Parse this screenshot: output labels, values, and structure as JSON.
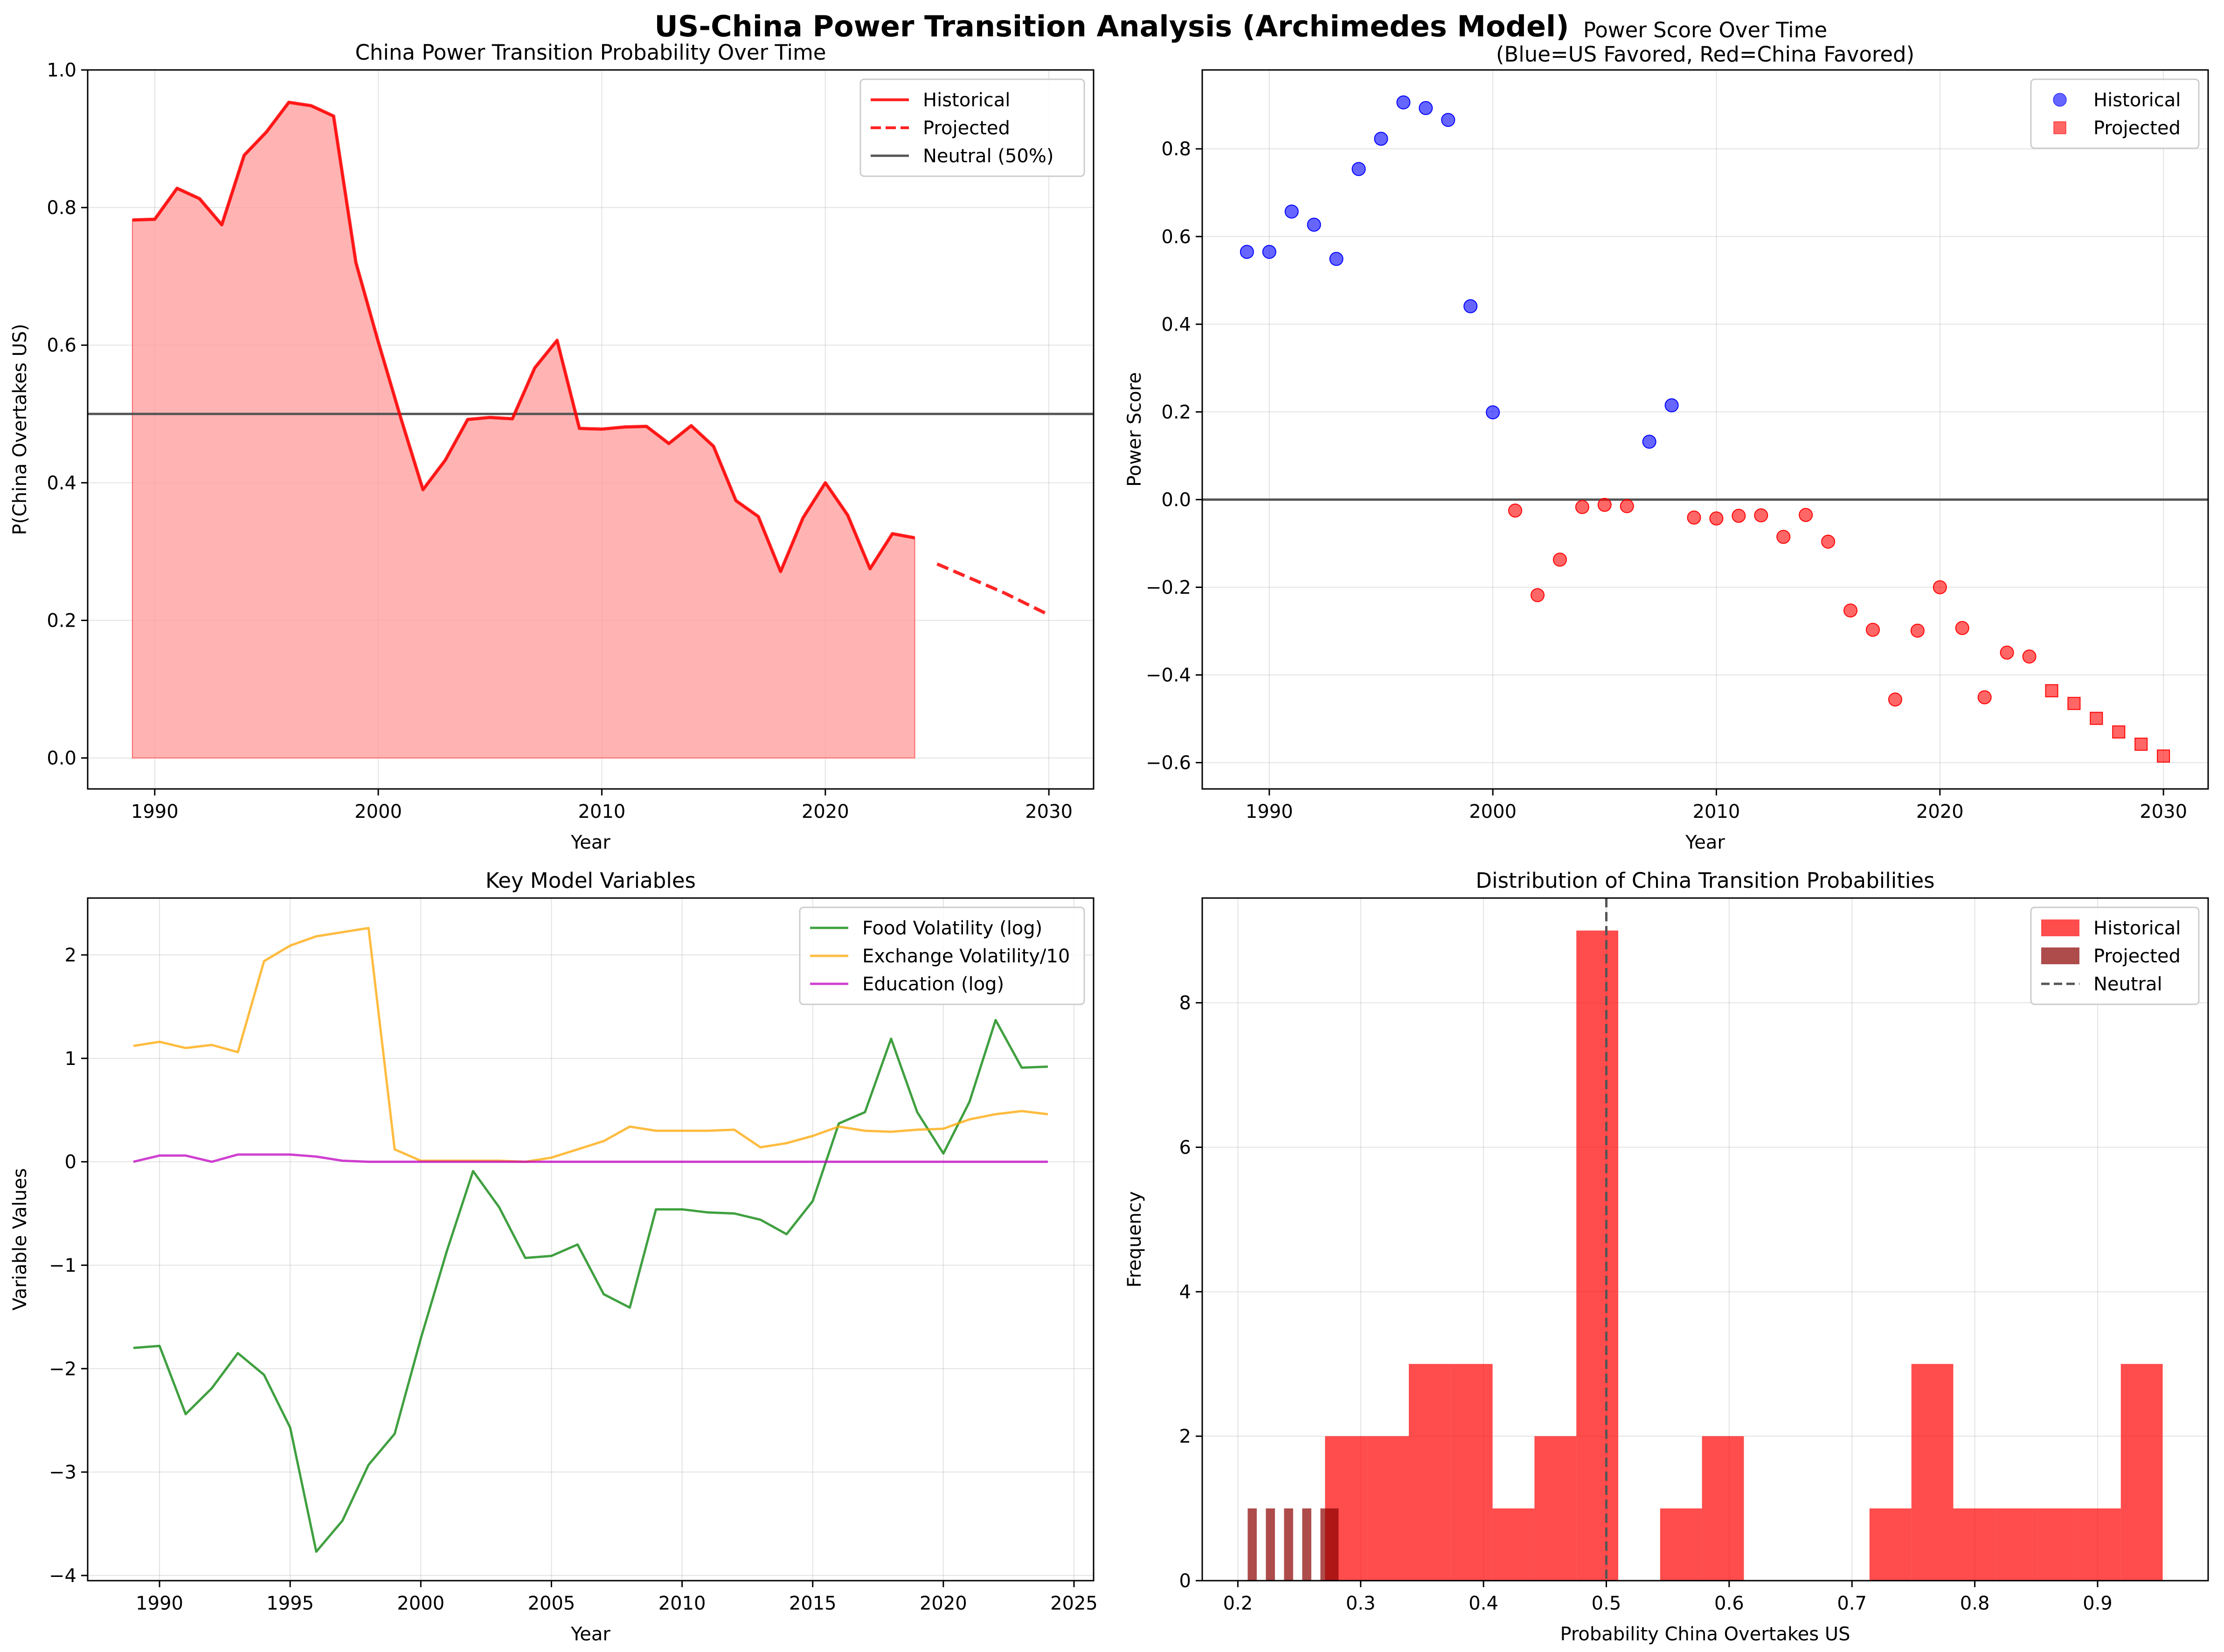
{
  "figure": {
    "title": "US-China Power Transition Analysis (Archimedes Model)"
  },
  "chart_data": [
    {
      "type": "area",
      "title": "China Power Transition Probability Over Time",
      "xlabel": "Year",
      "ylabel": "P(China Overtakes US)",
      "xlim": [
        1987,
        2032
      ],
      "ylim": [
        -0.045,
        1.0
      ],
      "xticks": [
        1990,
        2000,
        2010,
        2020,
        2030
      ],
      "yticks": [
        0.0,
        0.2,
        0.4,
        0.6,
        0.8,
        1.0
      ],
      "grid": true,
      "legend_position": "upper right",
      "series": [
        {
          "name": "Historical",
          "style": "solid",
          "color": "#ff0000",
          "fill": "#ff9999",
          "x": [
            1989,
            1990,
            1991,
            1992,
            1993,
            1994,
            1995,
            1996,
            1997,
            1998,
            1999,
            2000,
            2001,
            2002,
            2003,
            2004,
            2005,
            2006,
            2007,
            2008,
            2009,
            2010,
            2011,
            2012,
            2013,
            2014,
            2015,
            2016,
            2017,
            2018,
            2019,
            2020,
            2021,
            2022,
            2023,
            2024
          ],
          "y": [
            0.782,
            0.783,
            0.828,
            0.813,
            0.775,
            0.876,
            0.91,
            0.953,
            0.948,
            0.933,
            0.72,
            0.605,
            0.495,
            0.39,
            0.433,
            0.492,
            0.495,
            0.493,
            0.567,
            0.607,
            0.479,
            0.478,
            0.481,
            0.482,
            0.457,
            0.483,
            0.453,
            0.374,
            0.351,
            0.271,
            0.349,
            0.4,
            0.353,
            0.275,
            0.326,
            0.32
          ]
        },
        {
          "name": "Projected",
          "style": "dashed",
          "color": "#ff0000",
          "x": [
            2025,
            2026,
            2027,
            2028,
            2029,
            2030
          ],
          "y": [
            0.282,
            0.268,
            0.254,
            0.24,
            0.224,
            0.208
          ]
        }
      ],
      "reference_lines": [
        {
          "name": "Neutral (50%)",
          "y": 0.5,
          "color": "#555555"
        }
      ]
    },
    {
      "type": "scatter",
      "title": "Power Score Over Time",
      "subtitle": "(Blue=US Favored, Red=China Favored)",
      "xlabel": "Year",
      "ylabel": "Power Score",
      "xlim": [
        1987,
        2032
      ],
      "ylim": [
        -0.66,
        0.98
      ],
      "xticks": [
        1990,
        2000,
        2010,
        2020,
        2030
      ],
      "yticks": [
        -0.6,
        -0.4,
        -0.2,
        0.0,
        0.2,
        0.4,
        0.6,
        0.8
      ],
      "ytick_labels": [
        "−0.6",
        "−0.4",
        "−0.2",
        "0.0",
        "0.2",
        "0.4",
        "0.6",
        "0.8"
      ],
      "grid": true,
      "legend_position": "upper right",
      "colors": {
        "us_favored": "#0000ff",
        "china_favored": "#ff0000"
      },
      "legend": [
        {
          "name": "Historical",
          "marker": "circle",
          "color": "#0000ff"
        },
        {
          "name": "Projected",
          "marker": "square",
          "color": "#ff0000"
        }
      ],
      "series": [
        {
          "name": "Historical",
          "marker": "circle",
          "x": [
            1989,
            1990,
            1991,
            1992,
            1993,
            1994,
            1995,
            1996,
            1997,
            1998,
            1999,
            2000,
            2001,
            2002,
            2003,
            2004,
            2005,
            2006,
            2007,
            2008,
            2009,
            2010,
            2011,
            2012,
            2013,
            2014,
            2015,
            2016,
            2017,
            2018,
            2019,
            2020,
            2021,
            2022,
            2023,
            2024
          ],
          "y": [
            0.565,
            0.565,
            0.657,
            0.627,
            0.549,
            0.754,
            0.823,
            0.906,
            0.893,
            0.866,
            0.441,
            0.199,
            -0.025,
            -0.218,
            -0.137,
            -0.017,
            -0.012,
            -0.015,
            0.132,
            0.215,
            -0.041,
            -0.043,
            -0.037,
            -0.036,
            -0.085,
            -0.035,
            -0.096,
            -0.253,
            -0.297,
            -0.456,
            -0.299,
            -0.2,
            -0.293,
            -0.451,
            -0.349,
            -0.358
          ]
        },
        {
          "name": "Projected",
          "marker": "square",
          "x": [
            2025,
            2026,
            2027,
            2028,
            2029,
            2030
          ],
          "y": [
            -0.436,
            -0.465,
            -0.499,
            -0.53,
            -0.558,
            -0.585
          ]
        }
      ],
      "reference_lines": [
        {
          "y": 0.0,
          "color": "#555555"
        }
      ]
    },
    {
      "type": "line",
      "title": "Key Model Variables",
      "xlabel": "Year",
      "ylabel": "Variable Values",
      "xlim": [
        1987.25,
        2025.75
      ],
      "ylim": [
        -4.05,
        2.55
      ],
      "xticks": [
        1990,
        1995,
        2000,
        2005,
        2010,
        2015,
        2020,
        2025
      ],
      "yticks": [
        -4,
        -3,
        -2,
        -1,
        0,
        1,
        2
      ],
      "ytick_labels": [
        "−4",
        "−3",
        "−2",
        "−1",
        "0",
        "1",
        "2"
      ],
      "grid": true,
      "legend_position": "upper right",
      "x": [
        1989,
        1990,
        1991,
        1992,
        1993,
        1994,
        1995,
        1996,
        1997,
        1998,
        1999,
        2000,
        2001,
        2002,
        2003,
        2004,
        2005,
        2006,
        2007,
        2008,
        2009,
        2010,
        2011,
        2012,
        2013,
        2014,
        2015,
        2016,
        2017,
        2018,
        2019,
        2020,
        2021,
        2022,
        2023,
        2024
      ],
      "series": [
        {
          "name": "Food Volatility (log)",
          "color": "#008000",
          "values": [
            -1.8,
            -1.78,
            -2.44,
            -2.19,
            -1.85,
            -2.06,
            -2.57,
            -3.77,
            -3.47,
            -2.93,
            -2.63,
            -1.71,
            -0.86,
            -0.09,
            -0.44,
            -0.93,
            -0.91,
            -0.8,
            -1.28,
            -1.41,
            -0.46,
            -0.46,
            -0.49,
            -0.5,
            -0.56,
            -0.7,
            -0.38,
            0.37,
            0.48,
            1.19,
            0.48,
            0.08,
            0.58,
            1.37,
            0.91,
            0.92
          ]
        },
        {
          "name": "Exchange Volatility/10",
          "color": "#ffa500",
          "values": [
            1.12,
            1.16,
            1.1,
            1.13,
            1.06,
            1.94,
            2.09,
            2.18,
            2.22,
            2.26,
            0.12,
            0.01,
            0.01,
            0.01,
            0.01,
            0.0,
            0.04,
            0.12,
            0.2,
            0.34,
            0.3,
            0.3,
            0.3,
            0.31,
            0.14,
            0.18,
            0.25,
            0.34,
            0.3,
            0.29,
            0.31,
            0.32,
            0.41,
            0.46,
            0.49,
            0.46
          ]
        },
        {
          "name": "Education (log)",
          "color": "#c000c0",
          "values": [
            0.0,
            0.06,
            0.06,
            0.0,
            0.07,
            0.07,
            0.07,
            0.05,
            0.01,
            0.0,
            0.0,
            0.0,
            0.0,
            0.0,
            0.0,
            0.0,
            0.0,
            0.0,
            0.0,
            0.0,
            0.0,
            0.0,
            0.0,
            0.0,
            0.0,
            0.0,
            0.0,
            0.0,
            0.0,
            0.0,
            0.0,
            0.0,
            0.0,
            0.0,
            0.0,
            0.0
          ]
        }
      ]
    },
    {
      "type": "bar",
      "title": "Distribution of China Transition Probabilities",
      "xlabel": "Probability China Overtakes US",
      "ylabel": "Frequency",
      "xlim": [
        0.171,
        0.99
      ],
      "ylim": [
        0,
        9.45
      ],
      "xticks": [
        0.2,
        0.3,
        0.4,
        0.5,
        0.6,
        0.7,
        0.8,
        0.9
      ],
      "yticks": [
        0,
        2,
        4,
        6,
        8
      ],
      "grid": true,
      "legend_position": "upper right",
      "series": [
        {
          "name": "Historical",
          "color": "#ff0000",
          "bin_edges": [
            0.271,
            0.3051,
            0.3392,
            0.3733,
            0.4074,
            0.4415,
            0.4756,
            0.5097,
            0.5438,
            0.5779,
            0.612,
            0.6461,
            0.6802,
            0.7143,
            0.7484,
            0.7825,
            0.8166,
            0.8507,
            0.8848,
            0.9189,
            0.953
          ],
          "counts": [
            2,
            2,
            3,
            3,
            1,
            2,
            9,
            0,
            1,
            2,
            0,
            0,
            0,
            1,
            3,
            1,
            1,
            1,
            1,
            3
          ]
        },
        {
          "name": "Projected",
          "color": "#8b0000",
          "bin_edges": [
            0.208,
            0.2154,
            0.2228,
            0.2302,
            0.2376,
            0.245,
            0.2524,
            0.2598,
            0.2672,
            0.2746,
            0.282
          ],
          "counts": [
            1,
            0,
            1,
            0,
            1,
            0,
            1,
            0,
            1,
            1
          ]
        }
      ],
      "reference_lines": [
        {
          "name": "Neutral",
          "x": 0.5,
          "style": "dashed",
          "color": "#555555"
        }
      ]
    }
  ]
}
